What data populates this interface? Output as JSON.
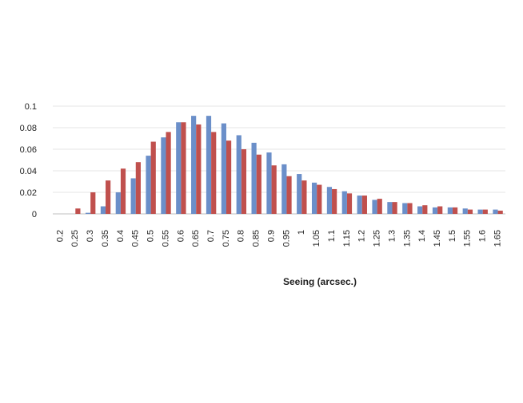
{
  "chart_data": {
    "type": "bar",
    "title": "",
    "xlabel": "Seeing (arcsec.)",
    "ylabel": "",
    "ylim": [
      0,
      0.1
    ],
    "yticks": [
      "0",
      "0.02",
      "0.04",
      "0.06",
      "0.08",
      "0.1"
    ],
    "grid": true,
    "legend": "none",
    "categories": [
      "0.2",
      "0.25",
      "0.3",
      "0.35",
      "0.4",
      "0.45",
      "0.5",
      "0.55",
      "0.6",
      "0.65",
      "0.7",
      "0.75",
      "0.8",
      "0.85",
      "0.9",
      "0.95",
      "1",
      "1.05",
      "1.1",
      "1.15",
      "1.2",
      "1.25",
      "1.3",
      "1.35",
      "1.4",
      "1.45",
      "1.5",
      "1.55",
      "1.6",
      "1.65"
    ],
    "series": [
      {
        "color": "#6b8fc9",
        "values": [
          0,
          0,
          0.001,
          0.007,
          0.02,
          0.033,
          0.054,
          0.071,
          0.085,
          0.091,
          0.091,
          0.084,
          0.073,
          0.066,
          0.057,
          0.046,
          0.037,
          0.029,
          0.025,
          0.021,
          0.017,
          0.013,
          0.011,
          0.01,
          0.007,
          0.006,
          0.006,
          0.005,
          0.004,
          0.004
        ]
      },
      {
        "color": "#c0504d",
        "values": [
          0,
          0.005,
          0.02,
          0.031,
          0.042,
          0.048,
          0.067,
          0.076,
          0.085,
          0.083,
          0.076,
          0.068,
          0.06,
          0.055,
          0.045,
          0.035,
          0.031,
          0.027,
          0.023,
          0.019,
          0.017,
          0.014,
          0.011,
          0.01,
          0.008,
          0.007,
          0.006,
          0.004,
          0.004,
          0.003
        ]
      }
    ]
  }
}
